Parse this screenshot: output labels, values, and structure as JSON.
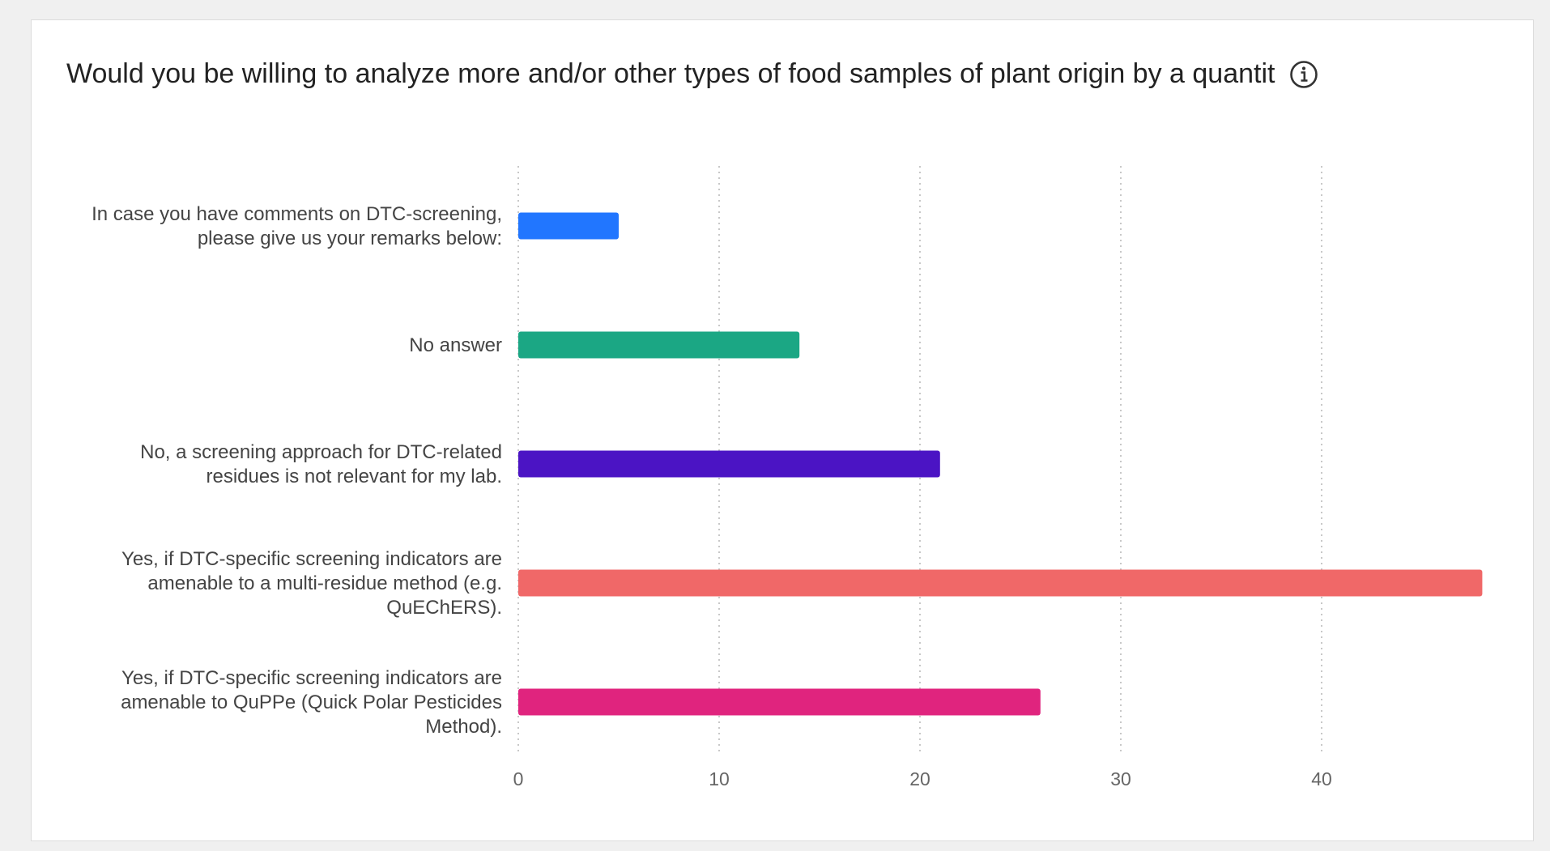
{
  "chart_data": {
    "type": "bar",
    "orientation": "horizontal",
    "title": "Would you be willing to analyze more and/or other types of food samples of plant origin by a quantit",
    "categories": [
      [
        "In case you have comments on DTC-screening,",
        "please give us your remarks below:"
      ],
      [
        "No answer"
      ],
      [
        "No, a screening approach for DTC-related",
        "residues is not relevant for my lab."
      ],
      [
        "Yes, if DTC-specific screening indicators are",
        "amenable to a multi-residue method (e.g.",
        "QuEChERS)."
      ],
      [
        "Yes, if DTC-specific screening indicators are",
        "amenable to QuPPe (Quick Polar Pesticides",
        "Method)."
      ]
    ],
    "values": [
      5,
      14,
      21,
      48,
      26
    ],
    "colors": [
      "#2176ff",
      "#1ba784",
      "#4b14c4",
      "#f06868",
      "#e0247e"
    ],
    "xticks": [
      "0",
      "10",
      "20",
      "30",
      "40"
    ],
    "xlim": [
      0,
      48
    ],
    "grid": true,
    "legend": "none"
  },
  "icons": {
    "info": "info-icon"
  }
}
